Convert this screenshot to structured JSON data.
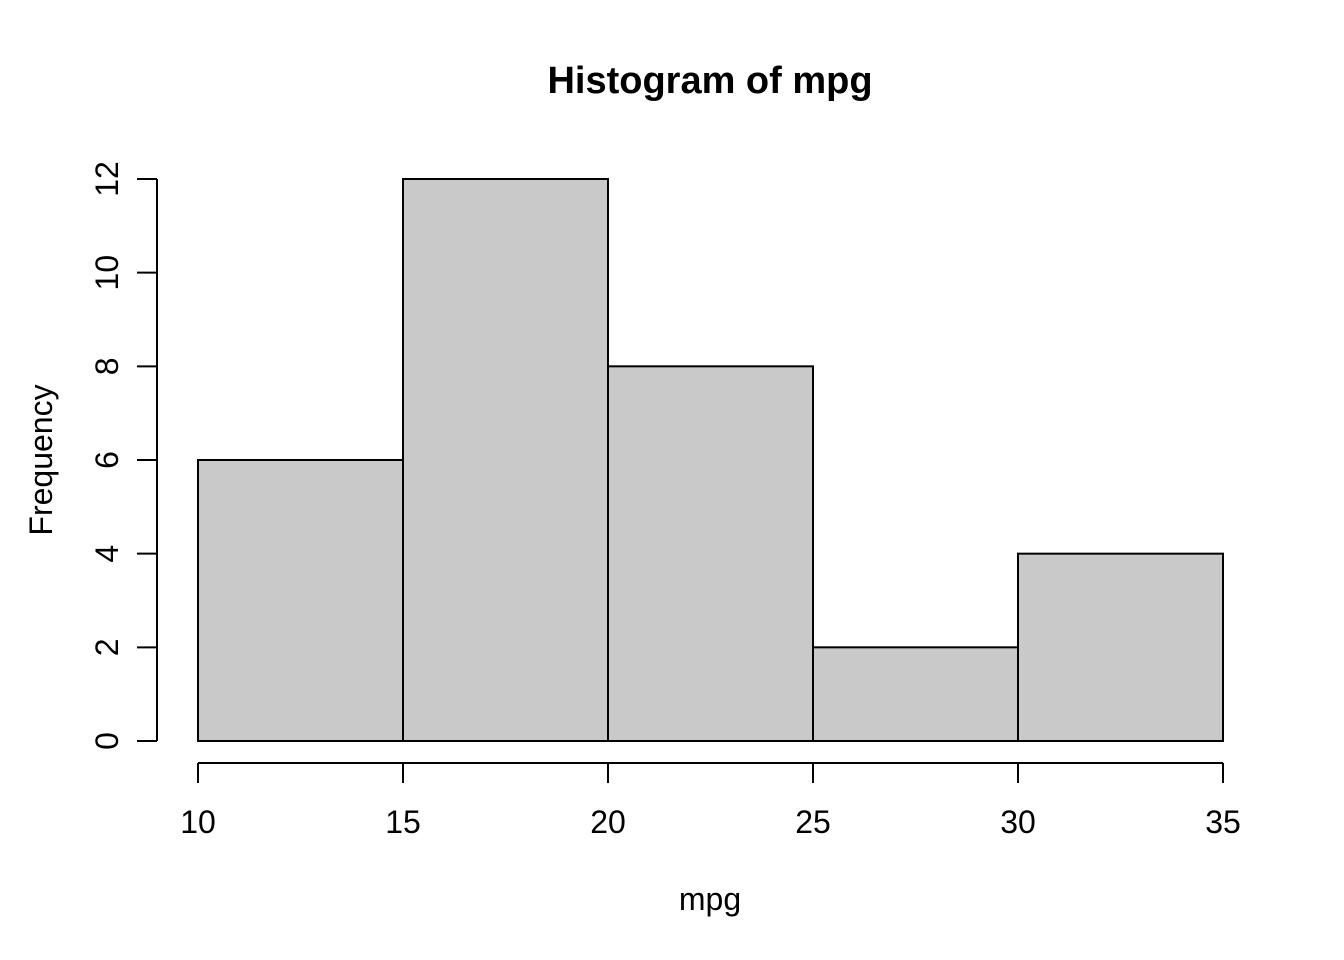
{
  "chart_data": {
    "type": "histogram",
    "title": "Histogram of mpg",
    "xlabel": "mpg",
    "ylabel": "Frequency",
    "bin_edges": [
      10,
      15,
      20,
      25,
      30,
      35
    ],
    "counts": [
      6,
      12,
      8,
      2,
      4
    ],
    "xticks": [
      10,
      15,
      20,
      25,
      30,
      35
    ],
    "yticks": [
      0,
      2,
      4,
      6,
      8,
      10,
      12
    ],
    "xlim": [
      10,
      35
    ],
    "ylim": [
      0,
      12
    ],
    "grid": false,
    "legend": "none",
    "colors": {
      "bar_fill": "#C9C9C9",
      "bar_border": "#000000",
      "axis": "#000000",
      "text": "#000000",
      "background": "#FFFFFF"
    }
  }
}
